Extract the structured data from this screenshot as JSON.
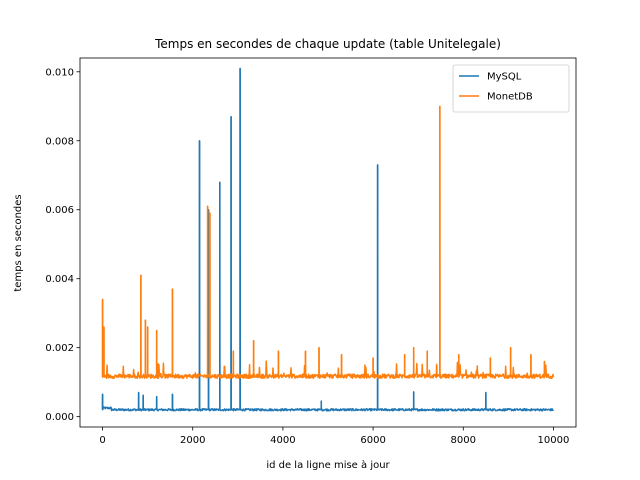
{
  "chart_data": {
    "type": "line",
    "title": "Temps en secondes de chaque update (table Unitelegale)",
    "xlabel": "id de la ligne mise à jour",
    "ylabel": "temps en secondes",
    "xlim": [
      -500,
      10500
    ],
    "ylim": [
      -0.0003,
      0.0104
    ],
    "xticks": [
      0,
      2000,
      4000,
      6000,
      8000,
      10000
    ],
    "xtick_labels": [
      "0",
      "2000",
      "4000",
      "6000",
      "8000",
      "10000"
    ],
    "yticks": [
      0.0,
      0.002,
      0.004,
      0.006,
      0.008,
      0.01
    ],
    "ytick_labels": [
      "0.000",
      "0.002",
      "0.004",
      "0.006",
      "0.008",
      "0.010"
    ],
    "grid": false,
    "legend_position": "top-right",
    "x_range": [
      0,
      10000
    ],
    "series": [
      {
        "name": "MySQL",
        "color": "#1f77b4",
        "baseline": 0.0002,
        "spikes": [
          {
            "x": 0,
            "y": 0.00065
          },
          {
            "x": 800,
            "y": 0.0007
          },
          {
            "x": 900,
            "y": 0.00062
          },
          {
            "x": 1200,
            "y": 0.00058
          },
          {
            "x": 1550,
            "y": 0.00065
          },
          {
            "x": 2150,
            "y": 0.008
          },
          {
            "x": 2350,
            "y": 0.006
          },
          {
            "x": 2600,
            "y": 0.0068
          },
          {
            "x": 2850,
            "y": 0.0087
          },
          {
            "x": 3050,
            "y": 0.0101
          },
          {
            "x": 4850,
            "y": 0.00045
          },
          {
            "x": 6100,
            "y": 0.0073
          },
          {
            "x": 6900,
            "y": 0.00072
          },
          {
            "x": 8500,
            "y": 0.0007
          }
        ]
      },
      {
        "name": "MonetDB",
        "color": "#ff7f0e",
        "baseline": 0.00115,
        "spikes": [
          {
            "x": 0,
            "y": 0.0034
          },
          {
            "x": 30,
            "y": 0.0026
          },
          {
            "x": 850,
            "y": 0.0041
          },
          {
            "x": 950,
            "y": 0.0028
          },
          {
            "x": 1000,
            "y": 0.0026
          },
          {
            "x": 1200,
            "y": 0.0025
          },
          {
            "x": 1550,
            "y": 0.0037
          },
          {
            "x": 2330,
            "y": 0.0061
          },
          {
            "x": 2380,
            "y": 0.0059
          },
          {
            "x": 2900,
            "y": 0.0019
          },
          {
            "x": 3350,
            "y": 0.0022
          },
          {
            "x": 3900,
            "y": 0.0019
          },
          {
            "x": 4500,
            "y": 0.0019
          },
          {
            "x": 4800,
            "y": 0.002
          },
          {
            "x": 5300,
            "y": 0.0018
          },
          {
            "x": 6000,
            "y": 0.0017
          },
          {
            "x": 6700,
            "y": 0.0018
          },
          {
            "x": 6900,
            "y": 0.002
          },
          {
            "x": 7200,
            "y": 0.0019
          },
          {
            "x": 7480,
            "y": 0.009
          },
          {
            "x": 7900,
            "y": 0.0018
          },
          {
            "x": 8600,
            "y": 0.0017
          },
          {
            "x": 9050,
            "y": 0.002
          },
          {
            "x": 9500,
            "y": 0.0018
          },
          {
            "x": 9800,
            "y": 0.0016
          }
        ]
      }
    ]
  }
}
